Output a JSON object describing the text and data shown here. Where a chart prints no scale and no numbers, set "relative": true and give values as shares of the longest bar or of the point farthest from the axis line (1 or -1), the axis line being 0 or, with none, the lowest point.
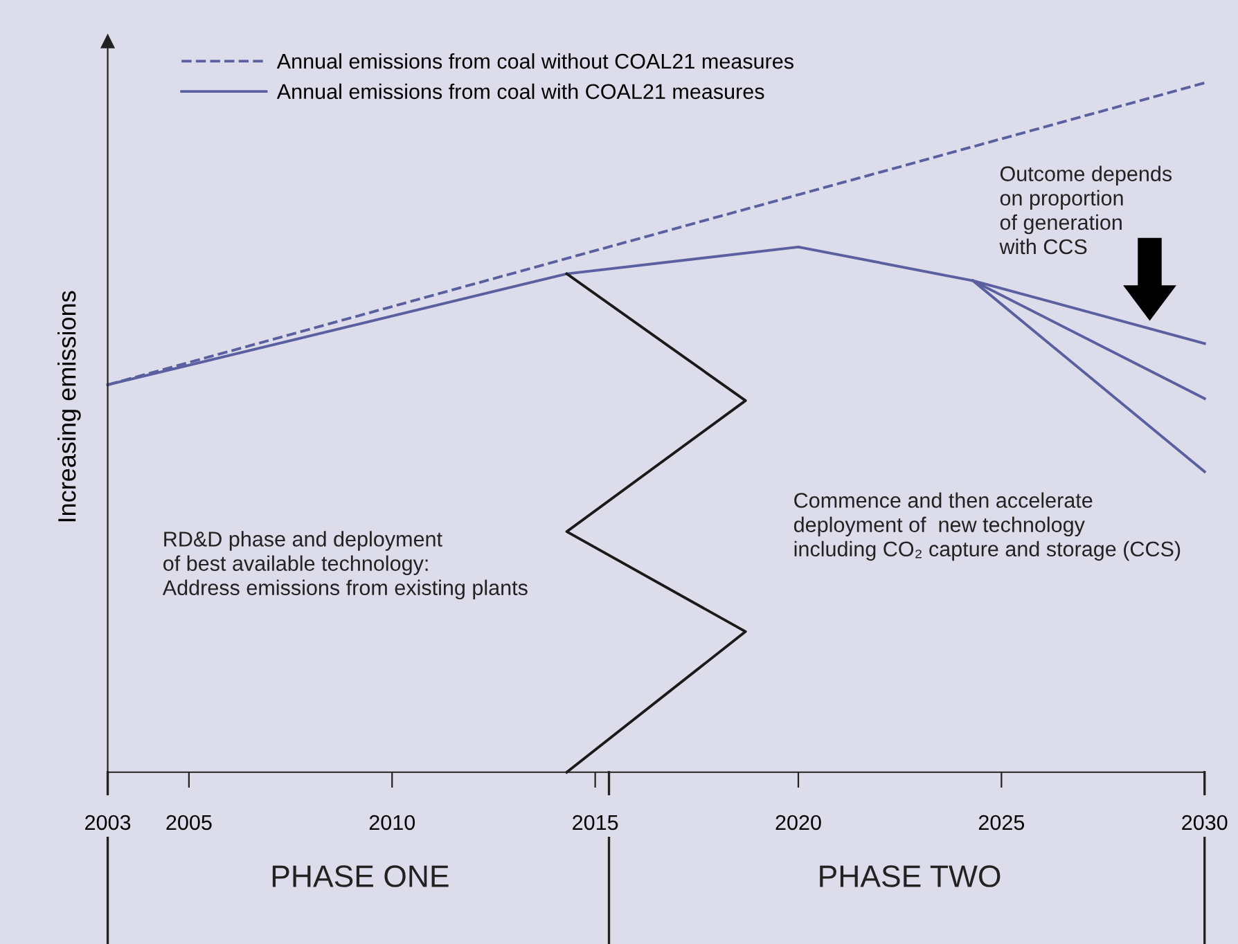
{
  "chart_data": {
    "type": "line",
    "relative": true,
    "ylabel": "Increasing emissions",
    "xlim": [
      2003,
      2030
    ],
    "xticks": [
      2003,
      2005,
      2010,
      2015,
      2020,
      2025,
      2030
    ],
    "legend": "top left",
    "marker": "none",
    "grid": false,
    "series": [
      {
        "name": "Annual emissions from coal without COAL21 measures",
        "color": "#5a5fa0",
        "line_style": "dashed",
        "x": [
          2003,
          2030
        ],
        "values": [
          0.562,
          1.0
        ]
      },
      {
        "name": "Annual emissions from coal with COAL21 measures",
        "color": "#5a5fa0",
        "line_style": "solid",
        "x": [
          2003,
          2014.3,
          2020,
          2024.3,
          2030
        ],
        "values": [
          0.562,
          0.723,
          0.762,
          0.713,
          0.622
        ]
      },
      {
        "color": "#5a5fa0",
        "line_style": "solid",
        "x": [
          2024.3,
          2030
        ],
        "values": [
          0.713,
          0.542
        ]
      },
      {
        "color": "#5a5fa0",
        "line_style": "solid",
        "x": [
          2024.3,
          2030
        ],
        "values": [
          0.713,
          0.436
        ]
      },
      {
        "color": "#1a1a1a",
        "line_style": "solid",
        "x": [
          2014.3,
          2018.7,
          2014.3,
          2018.7,
          2014.3
        ],
        "values": [
          0.723,
          0.539,
          0.349,
          0.204,
          0
        ]
      }
    ],
    "annotations": [
      "Outcome depends\non proportion\nof generation\nwith CCS",
      "RD&D phase and deployment\nof best available technology:\nAddress emissions from existing plants",
      "Commence and then accelerate\ndeployment of  new technology\nincluding CO₂ capture and storage (CCS)",
      "PHASE ONE",
      "PHASE TWO"
    ]
  }
}
